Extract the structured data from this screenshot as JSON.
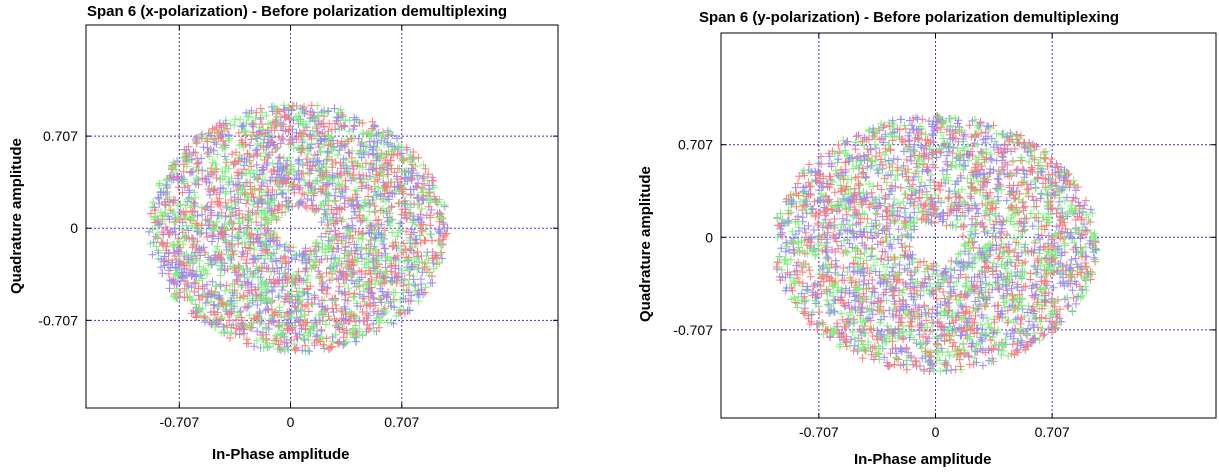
{
  "colors": {
    "series": [
      "#ff7a7a",
      "#7cf07a",
      "#9a8cf2"
    ],
    "grid": "#3333dd"
  },
  "chart_data": [
    {
      "type": "scatter",
      "title": "Span 6 (x-polarization) - Before polarization demultiplexing",
      "xlabel": "In-Phase amplitude",
      "ylabel": "Quadrature amplitude",
      "xlim": [
        -1.3,
        1.7
      ],
      "ylim": [
        -1.38,
        1.56
      ],
      "xticks": [
        {
          "value": -0.707,
          "label": "-0.707"
        },
        {
          "value": 0,
          "label": "0"
        },
        {
          "value": 0.707,
          "label": "0.707"
        }
      ],
      "yticks": [
        {
          "value": 0.707,
          "label": "0.707"
        },
        {
          "value": 0,
          "label": "0"
        },
        {
          "value": -0.707,
          "label": "-0.707"
        }
      ],
      "grid": true,
      "marker": "+",
      "distribution": {
        "shape": "ring",
        "center": [
          0.05,
          0.0
        ],
        "outer_radius": 0.95,
        "inner_radius": 0.15,
        "points": 3000
      }
    },
    {
      "type": "scatter",
      "title": "Span 6 (y-polarization) - Before polarization demultiplexing",
      "xlabel": "In-Phase amplitude",
      "ylabel": "Quadrature amplitude",
      "xlim": [
        -1.3,
        1.7
      ],
      "ylim": [
        -1.38,
        1.56
      ],
      "xticks": [
        {
          "value": -0.707,
          "label": "-0.707"
        },
        {
          "value": 0,
          "label": "0"
        },
        {
          "value": 0.707,
          "label": "0.707"
        }
      ],
      "yticks": [
        {
          "value": 0.707,
          "label": "0.707"
        },
        {
          "value": 0,
          "label": "0"
        },
        {
          "value": -0.707,
          "label": "-0.707"
        }
      ],
      "grid": true,
      "marker": "+",
      "distribution": {
        "shape": "ring",
        "center": [
          0.0,
          -0.05
        ],
        "outer_radius": 0.98,
        "inner_radius": 0.15,
        "points": 3000
      }
    }
  ]
}
